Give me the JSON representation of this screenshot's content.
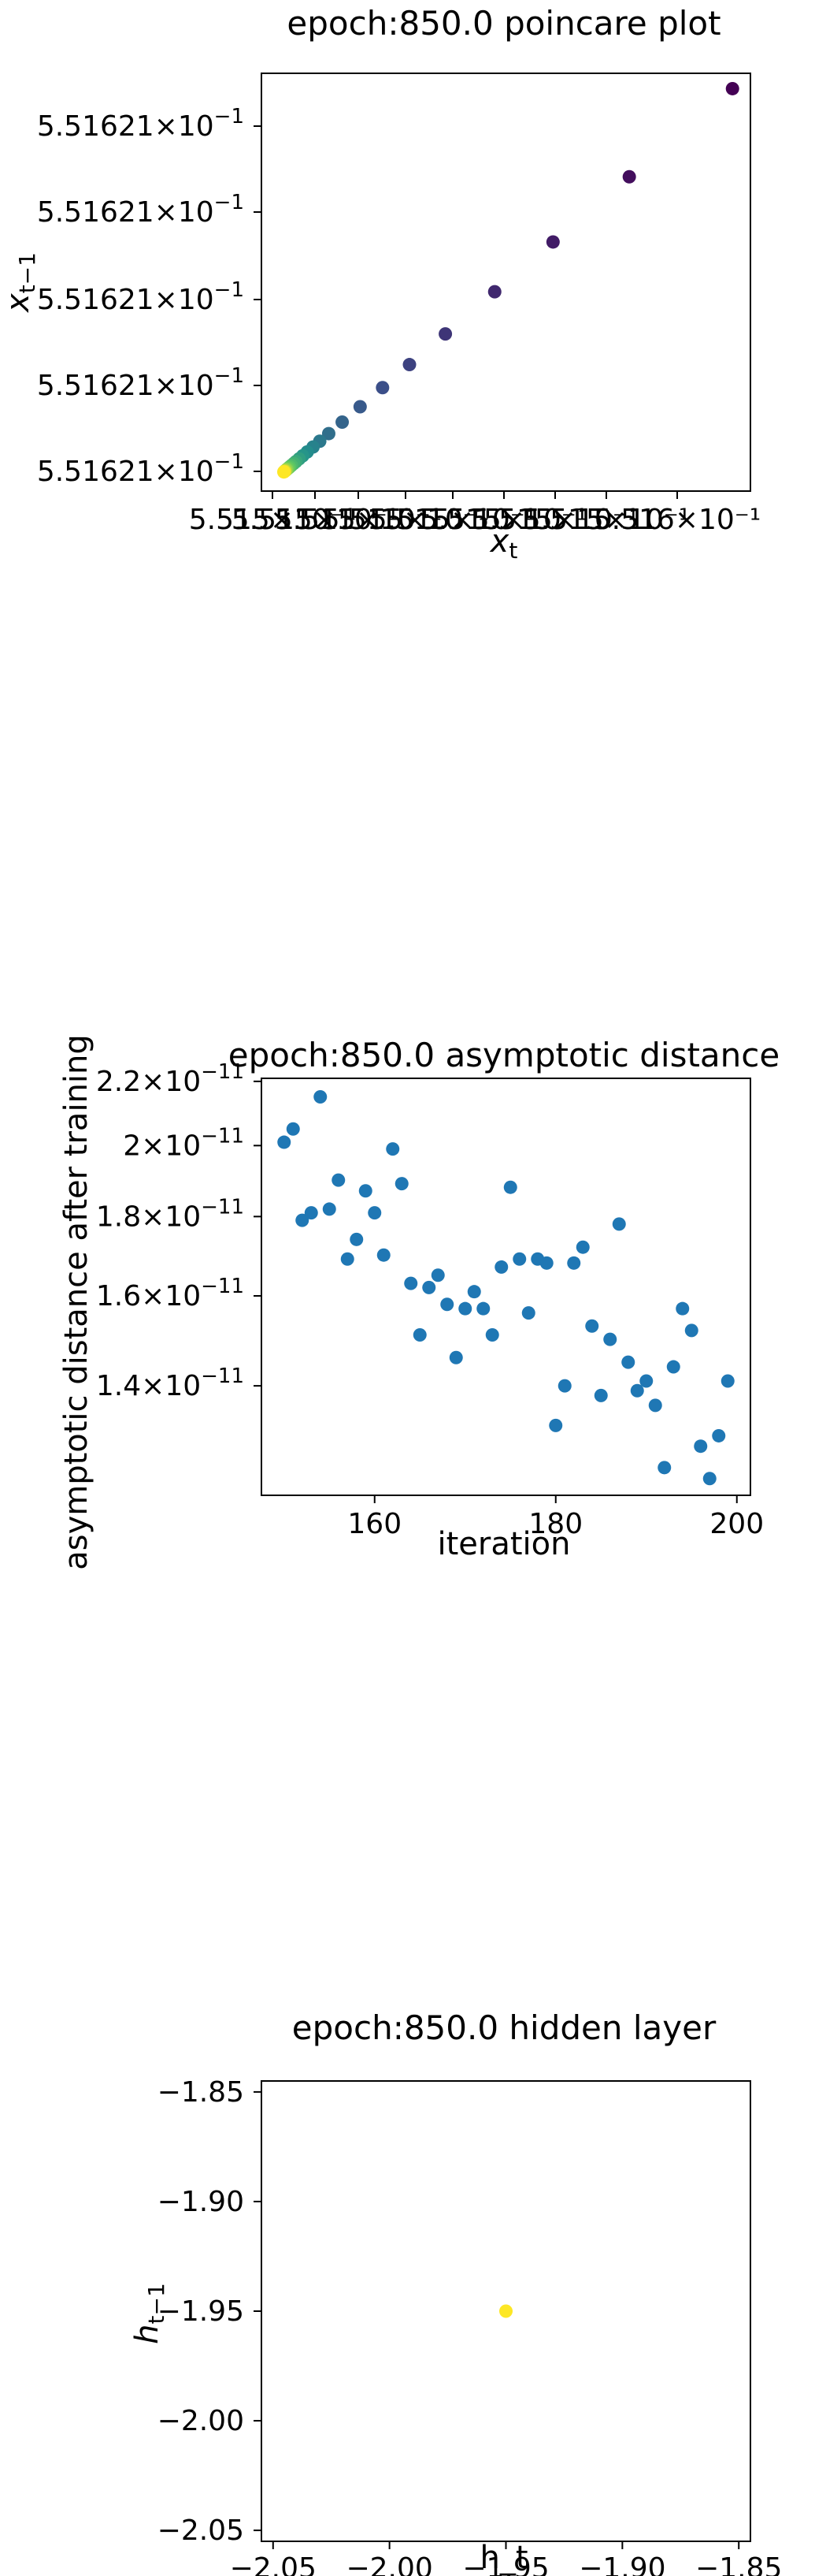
{
  "colors": {
    "axis": "#000000",
    "series_blue": "#1f77b4",
    "viridis_dark": "#440154",
    "viridis_mid": "#21918c",
    "viridis_bright": "#fde725"
  },
  "chart_data": [
    {
      "type": "scatter",
      "title": "epoch:850.0 poincare plot",
      "xlabel": "x_t",
      "ylabel": "x_{t-1}",
      "tick_labels_x": [
        "5.515",
        "5.515",
        "5.5⁢⁢",
        "5.515",
        "5.515",
        "5.515",
        "5.515",
        "5.515",
        "5.516×10⁻¹"
      ],
      "tick_labels_y": [
        "5.51621×10⁻¹",
        "5.51621×10⁻¹",
        "5.51621×10⁻¹",
        "5.51621×10⁻¹",
        "5.51621×10⁻¹"
      ],
      "tick_label_y_text": "5.51621",
      "tick_label_y_exp_base": "10",
      "tick_label_y_exp": "−1",
      "tick_label_x_right": "10⁻¹",
      "colormap": "viridis",
      "x": [
        1.0,
        0.77,
        0.6,
        0.47,
        0.36,
        0.28,
        0.22,
        0.17,
        0.13,
        0.1,
        0.08,
        0.065,
        0.052,
        0.042,
        0.034,
        0.027,
        0.022,
        0.017,
        0.013,
        0.01,
        0.007,
        0.005,
        0.003,
        0.002,
        0.001,
        0.0
      ],
      "y": [
        1.0,
        0.77,
        0.6,
        0.47,
        0.36,
        0.28,
        0.22,
        0.17,
        0.13,
        0.1,
        0.08,
        0.065,
        0.052,
        0.042,
        0.034,
        0.027,
        0.022,
        0.017,
        0.013,
        0.01,
        0.007,
        0.005,
        0.003,
        0.002,
        0.001,
        0.0
      ],
      "xlim": [
        -0.05,
        1.04
      ],
      "ylim": [
        -0.05,
        1.04
      ],
      "grid": false
    },
    {
      "type": "scatter",
      "title": "epoch:850.0 asymptotic distance",
      "xlabel": "iteration",
      "ylabel": "asymptotic distance after training",
      "y_scale": "log",
      "y_tick_values": [
        1.4e-11,
        1.6e-11,
        1.8e-11,
        2e-11,
        2.2e-11
      ],
      "y_tick_mantissa": [
        "1.4",
        "1.6",
        "1.8",
        "2",
        "2.2"
      ],
      "y_tick_exp_base": "10",
      "y_tick_exp": "−11",
      "x_ticks": [
        160,
        180,
        200
      ],
      "x_tick_labels": [
        "160",
        "180",
        "200"
      ],
      "xlim": [
        147.5,
        201.5
      ],
      "ylim": [
        1.19e-11,
        2.21e-11
      ],
      "x": [
        150,
        151,
        152,
        153,
        154,
        155,
        156,
        157,
        158,
        159,
        160,
        161,
        162,
        163,
        164,
        165,
        166,
        167,
        168,
        169,
        170,
        171,
        172,
        173,
        174,
        175,
        176,
        177,
        178,
        179,
        180,
        181,
        182,
        183,
        184,
        185,
        186,
        187,
        188,
        189,
        190,
        191,
        192,
        193,
        194,
        195,
        196,
        197,
        198,
        199
      ],
      "y": [
        2.01e-11,
        2.05e-11,
        1.79e-11,
        1.81e-11,
        2.15e-11,
        1.82e-11,
        1.9e-11,
        1.69e-11,
        1.74e-11,
        1.87e-11,
        1.81e-11,
        1.7e-11,
        1.99e-11,
        1.89e-11,
        1.63e-11,
        1.51e-11,
        1.62e-11,
        1.65e-11,
        1.58e-11,
        1.46e-11,
        1.57e-11,
        1.61e-11,
        1.57e-11,
        1.51e-11,
        1.67e-11,
        1.88e-11,
        1.69e-11,
        1.56e-11,
        1.69e-11,
        1.68e-11,
        1.32e-11,
        1.4e-11,
        1.68e-11,
        1.72e-11,
        1.53e-11,
        1.38e-11,
        1.5e-11,
        1.78e-11,
        1.45e-11,
        1.39e-11,
        1.41e-11,
        1.36e-11,
        1.24e-11,
        1.44e-11,
        1.57e-11,
        1.52e-11,
        1.28e-11,
        1.22e-11,
        1.3e-11,
        1.41e-11
      ],
      "grid": false
    },
    {
      "type": "scatter",
      "title": "epoch:850.0 hidden layer",
      "xlabel": "h_t",
      "ylabel": "h_{t-1}",
      "x_ticks": [
        -2.05,
        -2.0,
        -1.95,
        -1.9,
        -1.85
      ],
      "x_tick_labels": [
        "−2.05",
        "−2.00",
        "−1.95",
        "−1.90",
        "−1.85"
      ],
      "y_ticks": [
        -2.05,
        -2.0,
        -1.95,
        -1.9,
        -1.85
      ],
      "y_tick_labels": [
        "−2.05",
        "−2.00",
        "−1.95",
        "−1.90",
        "−1.85"
      ],
      "xlim": [
        -2.055,
        -1.845
      ],
      "ylim": [
        -2.055,
        -1.845
      ],
      "x": [
        -1.95
      ],
      "y": [
        -1.95
      ],
      "point_color": "#fde725",
      "grid": false
    }
  ]
}
